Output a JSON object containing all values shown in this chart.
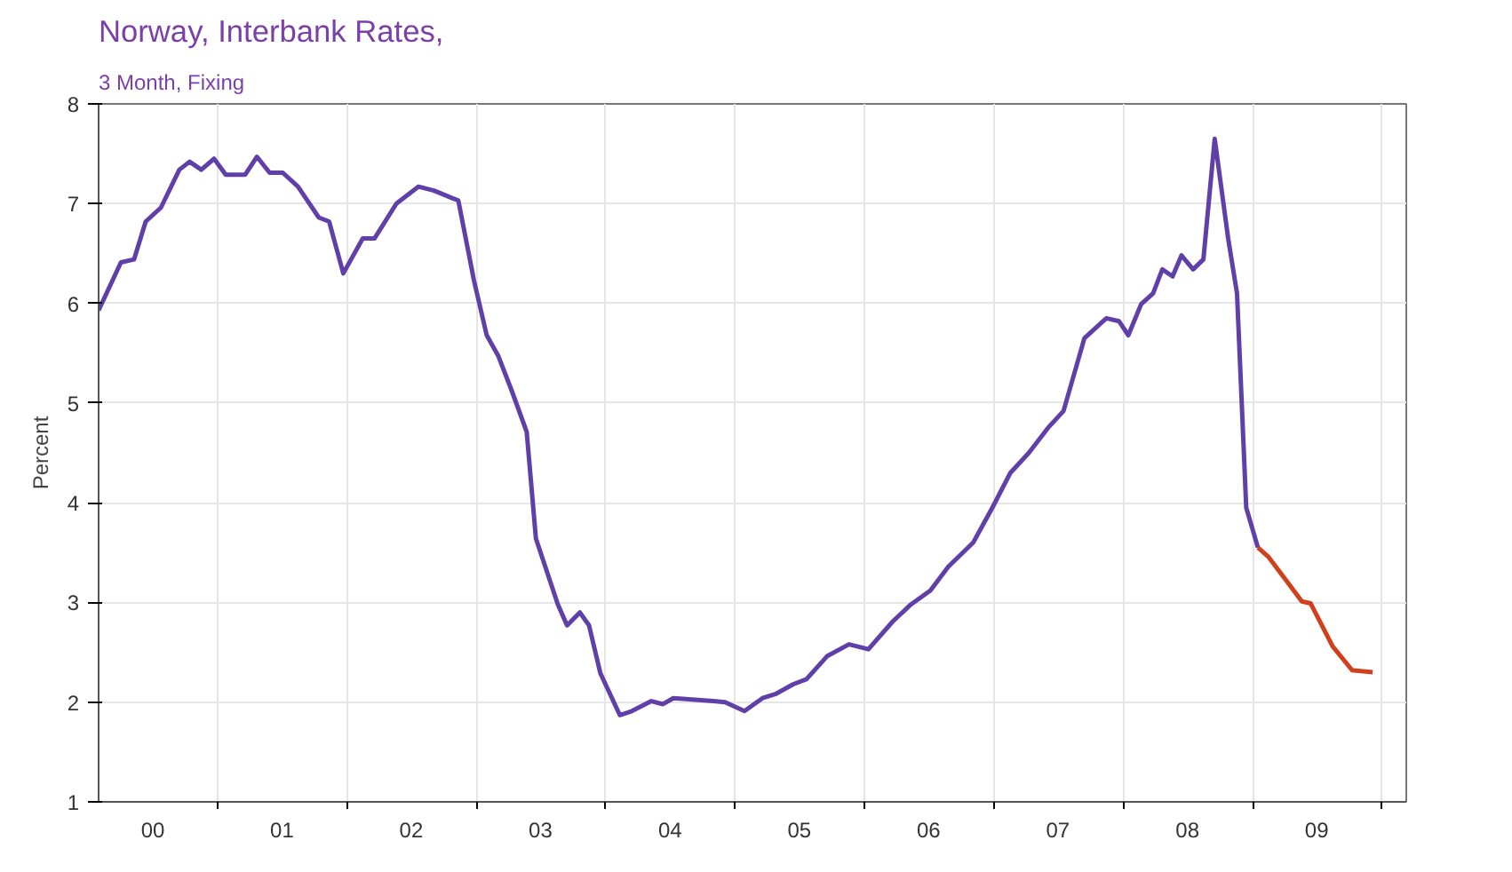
{
  "chart_data": {
    "type": "line",
    "title": "Norway, Interbank Rates,",
    "subtitle": "3 Month, Fixing",
    "ylabel": "Percent",
    "xlim": [
      "2000-01-30",
      "2010-03-11"
    ],
    "ylim": [
      1,
      8
    ],
    "xticks": [
      {
        "value": "2000-07",
        "label": "00"
      },
      {
        "value": "2001-07",
        "label": "01"
      },
      {
        "value": "2002-07",
        "label": "02"
      },
      {
        "value": "2003-07",
        "label": "03"
      },
      {
        "value": "2004-07",
        "label": "04"
      },
      {
        "value": "2005-07",
        "label": "05"
      },
      {
        "value": "2006-07",
        "label": "06"
      },
      {
        "value": "2007-07",
        "label": "07"
      },
      {
        "value": "2008-07",
        "label": "08"
      },
      {
        "value": "2009-07",
        "label": "09"
      },
      {
        "value": "2001",
        "label": null
      },
      {
        "value": "2002",
        "label": null
      },
      {
        "value": "2003",
        "label": null
      },
      {
        "value": "2004",
        "label": null
      },
      {
        "value": "2005",
        "label": null
      },
      {
        "value": "2006",
        "label": null
      },
      {
        "value": "2007",
        "label": null
      },
      {
        "value": "2008",
        "label": null
      },
      {
        "value": "2009",
        "label": null
      },
      {
        "value": "2010",
        "label": null
      }
    ],
    "yticks": [
      1,
      2,
      3,
      4,
      5,
      6,
      7,
      8
    ],
    "grid": true,
    "marker": "none",
    "line_style": "solid",
    "series": [
      {
        "color": "#6040a8",
        "x": [
          "2000-01-30",
          "2000-04-02",
          "2000-05-09",
          "2000-06-11",
          "2000-07-24",
          "2000-09-14",
          "2000-10-13",
          "2000-11-15",
          "2000-12-21",
          "2001-01-23",
          "2001-03-19",
          "2001-04-21",
          "2001-05-27",
          "2001-07-03",
          "2001-08-15",
          "2001-10-13",
          "2001-11-11",
          "2001-12-21",
          "2002-02-14",
          "2002-03-19",
          "2002-05-20",
          "2002-07-21",
          "2002-09-03",
          "2002-11-11",
          "2002-12-25",
          "2003-01-30",
          "2003-03-04",
          "2003-04-10",
          "2003-05-23",
          "2003-06-18",
          "2003-08-19",
          "2003-09-14",
          "2003-10-20",
          "2003-11-15",
          "2003-12-17",
          "2004-02-10",
          "2004-03-15",
          "2004-05-09",
          "2004-06-11",
          "2004-07-10",
          "2004-10-31",
          "2004-12-03",
          "2005-01-27",
          "2005-03-19",
          "2005-04-24",
          "2005-06-14",
          "2005-07-21",
          "2005-09-17",
          "2005-11-18",
          "2006-01-12",
          "2006-03-22",
          "2006-05-12",
          "2006-07-06",
          "2006-08-26",
          "2006-11-04",
          "2006-12-28",
          "2007-02-17",
          "2007-04-10",
          "2007-06-03",
          "2007-07-17",
          "2007-09-14",
          "2007-11-15",
          "2007-12-21",
          "2008-01-16",
          "2008-02-21",
          "2008-03-26",
          "2008-04-21",
          "2008-05-20",
          "2008-06-14",
          "2008-07-17",
          "2008-08-15",
          "2008-09-16",
          "2008-10-24",
          "2008-11-18",
          "2008-12-14",
          "2009-01-16"
        ],
        "values": [
          5.93,
          6.41,
          6.44,
          6.82,
          6.96,
          7.34,
          7.42,
          7.34,
          7.45,
          7.29,
          7.29,
          7.47,
          7.31,
          7.31,
          7.17,
          6.86,
          6.82,
          6.3,
          6.65,
          6.65,
          7.0,
          7.17,
          7.13,
          7.03,
          6.23,
          5.68,
          5.47,
          5.13,
          4.71,
          3.64,
          2.98,
          2.77,
          2.9,
          2.77,
          2.29,
          1.87,
          1.91,
          2.01,
          1.98,
          2.04,
          2.01,
          2.0,
          1.91,
          2.04,
          2.08,
          2.18,
          2.23,
          2.46,
          2.58,
          2.53,
          2.81,
          2.98,
          3.12,
          3.36,
          3.6,
          3.95,
          4.3,
          4.5,
          4.75,
          4.92,
          5.65,
          5.85,
          5.82,
          5.68,
          5.99,
          6.1,
          6.34,
          6.27,
          6.48,
          6.34,
          6.44,
          7.65,
          6.65,
          6.1,
          3.95,
          3.55
        ]
      },
      {
        "color": "#d0401c",
        "x": [
          "2009-01-16",
          "2009-02-14",
          "2009-04-06",
          "2009-05-20",
          "2009-06-14",
          "2009-08-15",
          "2009-10-09",
          "2009-12-06"
        ],
        "values": [
          3.55,
          3.46,
          3.22,
          3.01,
          2.99,
          2.56,
          2.32,
          2.3
        ]
      }
    ]
  }
}
